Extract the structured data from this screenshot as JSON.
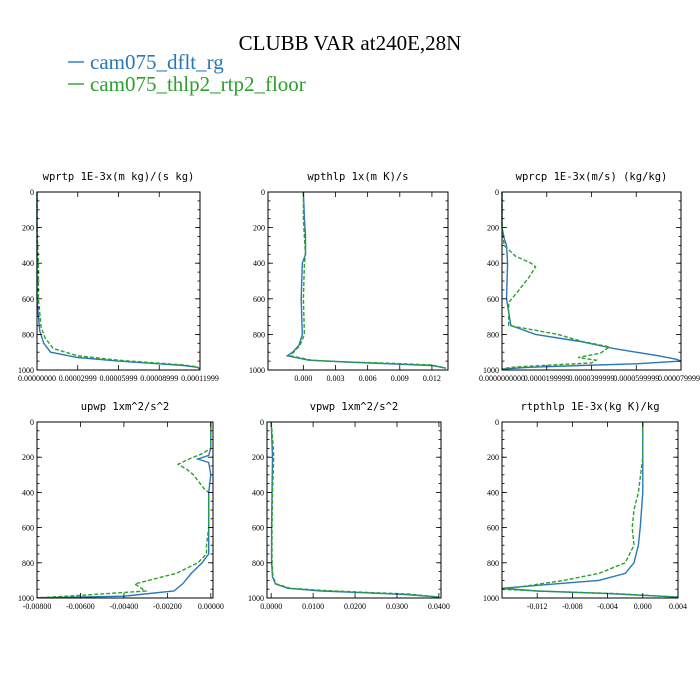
{
  "figure": {
    "title": "CLUBB VAR at240E,28N",
    "legend": [
      {
        "label": "cam075_dflt_rg",
        "color": "#2878b8",
        "dash": "solid"
      },
      {
        "label": "cam075_thlp2_rtp2_floor",
        "color": "#2ca02c",
        "dash": "dash"
      }
    ]
  },
  "chart_data": [
    {
      "type": "line",
      "title": "wprtp  1E-3x(m kg)/(s kg)",
      "xlim": [
        0,
        0.00012
      ],
      "ylim": [
        1000,
        0
      ],
      "xticks": [
        0.0,
        3e-05,
        6e-05,
        9e-05,
        0.00012
      ],
      "xtick_labels": [
        "0.00000000",
        "0.00002999",
        "0.00005999",
        "0.00008999",
        "0.00011999"
      ],
      "yticks": [
        0,
        200,
        400,
        600,
        800,
        1000
      ],
      "series": [
        {
          "name": "cam075_dflt_rg",
          "points": [
            [
              0,
              0
            ],
            [
              0,
              200
            ],
            [
              0,
              400
            ],
            [
              0,
              600
            ],
            [
              2e-06,
              780
            ],
            [
              5e-06,
              850
            ],
            [
              1e-05,
              900
            ],
            [
              3e-05,
              930
            ],
            [
              6e-05,
              950
            ],
            [
              9e-05,
              965
            ],
            [
              0.000108,
              975
            ],
            [
              0.000118,
              985
            ],
            [
              0.00012,
              995
            ]
          ]
        },
        {
          "name": "cam075_thlp2_rtp2_floor",
          "points": [
            [
              0,
              0
            ],
            [
              0,
              200
            ],
            [
              1e-06,
              400
            ],
            [
              1e-06,
              600
            ],
            [
              3e-06,
              760
            ],
            [
              6e-06,
              820
            ],
            [
              1.2e-05,
              880
            ],
            [
              3e-05,
              920
            ],
            [
              6e-05,
              945
            ],
            [
              9e-05,
              962
            ],
            [
              0.000108,
              972
            ],
            [
              0.000118,
              982
            ],
            [
              0.00012,
              995
            ]
          ]
        }
      ]
    },
    {
      "type": "line",
      "title": "wpthlp  1x(m K)/s",
      "xlim": [
        -0.0033,
        0.0135
      ],
      "ylim": [
        1000,
        0
      ],
      "xticks": [
        0.0,
        0.003,
        0.006,
        0.009,
        0.012
      ],
      "xtick_labels": [
        "0.000",
        "0.003",
        "0.006",
        "0.009",
        "0.012"
      ],
      "yticks": [
        0,
        200,
        400,
        600,
        800,
        1000
      ],
      "series": [
        {
          "name": "cam075_dflt_rg",
          "points": [
            [
              0,
              0
            ],
            [
              0.0001,
              150
            ],
            [
              0.0002,
              250
            ],
            [
              0.0002,
              350
            ],
            [
              -0.0001,
              400
            ],
            [
              -0.0002,
              600
            ],
            [
              -0.0001,
              800
            ],
            [
              -0.0004,
              860
            ],
            [
              -0.001,
              900
            ],
            [
              -0.0015,
              920
            ],
            [
              0.0005,
              945
            ],
            [
              0.004,
              955
            ],
            [
              0.008,
              965
            ],
            [
              0.012,
              975
            ],
            [
              0.0133,
              990
            ]
          ]
        },
        {
          "name": "cam075_thlp2_rtp2_floor",
          "points": [
            [
              0,
              0
            ],
            [
              0,
              150
            ],
            [
              0.0001,
              250
            ],
            [
              0.0002,
              350
            ],
            [
              0.0001,
              400
            ],
            [
              0,
              600
            ],
            [
              0.0001,
              800
            ],
            [
              -0.0003,
              860
            ],
            [
              -0.0009,
              900
            ],
            [
              -0.0012,
              920
            ],
            [
              0.0008,
              945
            ],
            [
              0.004,
              955
            ],
            [
              0.008,
              962
            ],
            [
              0.012,
              972
            ],
            [
              0.0133,
              990
            ]
          ]
        }
      ]
    },
    {
      "type": "line",
      "title": "wprcp  1E-3x(m/s) (kg/kg)",
      "xlim": [
        0,
        8e-05
      ],
      "ylim": [
        1000,
        0
      ],
      "xticks": [
        0.0,
        2e-05,
        4e-05,
        6e-05,
        8e-05
      ],
      "xtick_labels": [
        "0.0000000000",
        "0.0000199999",
        "0.0000399999",
        "0.0000599999",
        "0.0000799998"
      ],
      "yticks": [
        0,
        200,
        400,
        600,
        800,
        1000
      ],
      "series": [
        {
          "name": "cam075_dflt_rg",
          "points": [
            [
              0,
              0
            ],
            [
              0,
              200
            ],
            [
              1e-06,
              260
            ],
            [
              2e-06,
              300
            ],
            [
              2.5e-06,
              400
            ],
            [
              2e-06,
              600
            ],
            [
              4e-06,
              750
            ],
            [
              1.5e-05,
              800
            ],
            [
              3.5e-05,
              840
            ],
            [
              5e-05,
              880
            ],
            [
              7e-05,
              920
            ],
            [
              7.8e-05,
              940
            ],
            [
              8e-05,
              950
            ],
            [
              6e-05,
              965
            ],
            [
              3.5e-05,
              975
            ],
            [
              1.2e-05,
              985
            ],
            [
              0,
              995
            ]
          ]
        },
        {
          "name": "cam075_thlp2_rtp2_floor",
          "points": [
            [
              0,
              0
            ],
            [
              0,
              200
            ],
            [
              1e-06,
              300
            ],
            [
              6e-06,
              360
            ],
            [
              1.3e-05,
              400
            ],
            [
              1.5e-05,
              420
            ],
            [
              1.2e-05,
              480
            ],
            [
              7e-06,
              560
            ],
            [
              3e-06,
              620
            ],
            [
              3e-06,
              750
            ],
            [
              1.2e-05,
              770
            ],
            [
              2.5e-05,
              800
            ],
            [
              3.6e-05,
              840
            ],
            [
              4.8e-05,
              870
            ],
            [
              4.4e-05,
              905
            ],
            [
              3.4e-05,
              930
            ],
            [
              4.2e-05,
              945
            ],
            [
              4e-05,
              960
            ],
            [
              1.8e-05,
              975
            ],
            [
              4e-06,
              985
            ],
            [
              0,
              995
            ]
          ]
        }
      ]
    },
    {
      "type": "line",
      "title": "upwp  1xm^2/s^2",
      "xlim": [
        -0.008,
        0.0001
      ],
      "ylim": [
        1000,
        0
      ],
      "xticks": [
        -0.008,
        -0.006,
        -0.004,
        -0.002,
        0.0
      ],
      "xtick_labels": [
        "-0.00800",
        "-0.00600",
        "-0.00400",
        "-0.00200",
        "0.00000"
      ],
      "yticks": [
        0,
        200,
        400,
        600,
        800,
        1000
      ],
      "series": [
        {
          "name": "cam075_dflt_rg",
          "points": [
            [
              0,
              0
            ],
            [
              0,
              150
            ],
            [
              -0.0001,
              190
            ],
            [
              -0.0006,
              210
            ],
            [
              -0.0001,
              230
            ],
            [
              0,
              300
            ],
            [
              -0.0001,
              400
            ],
            [
              -0.0001,
              600
            ],
            [
              -0.0001,
              700
            ],
            [
              -0.0001,
              750
            ],
            [
              -0.0004,
              800
            ],
            [
              -0.0009,
              860
            ],
            [
              -0.0013,
              920
            ],
            [
              -0.0017,
              960
            ],
            [
              -0.004,
              990
            ],
            [
              -0.008,
              999
            ]
          ]
        },
        {
          "name": "cam075_thlp2_rtp2_floor",
          "points": [
            [
              0,
              0
            ],
            [
              0,
              150
            ],
            [
              -0.0004,
              180
            ],
            [
              -0.001,
              210
            ],
            [
              -0.0015,
              240
            ],
            [
              -0.0011,
              270
            ],
            [
              -0.0008,
              300
            ],
            [
              -0.0003,
              380
            ],
            [
              -0.0001,
              400
            ],
            [
              -0.0001,
              600
            ],
            [
              -0.0002,
              700
            ],
            [
              -0.0002,
              750
            ],
            [
              -0.0006,
              800
            ],
            [
              -0.0016,
              860
            ],
            [
              -0.0035,
              920
            ],
            [
              -0.003,
              960
            ],
            [
              -0.006,
              985
            ],
            [
              -0.008,
              999
            ]
          ]
        }
      ]
    },
    {
      "type": "line",
      "title": "vpwp  1xm^2/s^2",
      "xlim": [
        -0.001,
        0.0405
      ],
      "ylim": [
        1000,
        0
      ],
      "xticks": [
        0.0,
        0.01,
        0.02,
        0.03,
        0.04
      ],
      "xtick_labels": [
        "0.0000",
        "0.0100",
        "0.0200",
        "0.0300",
        "0.0400"
      ],
      "yticks": [
        0,
        200,
        400,
        600,
        800,
        1000
      ],
      "series": [
        {
          "name": "cam075_dflt_rg",
          "points": [
            [
              0,
              0
            ],
            [
              0.0003,
              200
            ],
            [
              0.0002,
              400
            ],
            [
              0.0001,
              600
            ],
            [
              0.0001,
              800
            ],
            [
              0.0003,
              880
            ],
            [
              0.001,
              920
            ],
            [
              0.004,
              945
            ],
            [
              0.012,
              960
            ],
            [
              0.022,
              970
            ],
            [
              0.032,
              980
            ],
            [
              0.04,
              995
            ]
          ]
        },
        {
          "name": "cam075_thlp2_rtp2_floor",
          "points": [
            [
              0,
              0
            ],
            [
              0.0005,
              150
            ],
            [
              0.0006,
              200
            ],
            [
              0.0003,
              400
            ],
            [
              0.0002,
              600
            ],
            [
              0.0002,
              800
            ],
            [
              0.0004,
              880
            ],
            [
              0.0012,
              920
            ],
            [
              0.0045,
              945
            ],
            [
              0.013,
              958
            ],
            [
              0.023,
              968
            ],
            [
              0.033,
              978
            ],
            [
              0.04,
              995
            ]
          ]
        }
      ]
    },
    {
      "type": "line",
      "title": "rtpthlp  1E-3x(kg K)/kg",
      "xlim": [
        -0.016,
        0.004
      ],
      "ylim": [
        1000,
        0
      ],
      "xticks": [
        -0.012,
        -0.008,
        -0.004,
        0.0,
        0.004
      ],
      "xtick_labels": [
        "-0.012",
        "-0.008",
        "-0.004",
        "0.000",
        "0.004"
      ],
      "yticks": [
        0,
        200,
        400,
        600,
        800,
        1000
      ],
      "series": [
        {
          "name": "cam075_dflt_rg",
          "points": [
            [
              0,
              0
            ],
            [
              0,
              200
            ],
            [
              0,
              400
            ],
            [
              -0.0003,
              600
            ],
            [
              -0.0005,
              700
            ],
            [
              -0.001,
              800
            ],
            [
              -0.002,
              860
            ],
            [
              -0.005,
              900
            ],
            [
              -0.01,
              920
            ],
            [
              -0.016,
              945
            ],
            [
              -0.012,
              960
            ],
            [
              -0.004,
              975
            ],
            [
              0.004,
              995
            ]
          ]
        },
        {
          "name": "cam075_thlp2_rtp2_floor",
          "points": [
            [
              0,
              0
            ],
            [
              0,
              200
            ],
            [
              -0.0005,
              400
            ],
            [
              -0.001,
              500
            ],
            [
              -0.0012,
              600
            ],
            [
              -0.001,
              700
            ],
            [
              -0.002,
              800
            ],
            [
              -0.005,
              860
            ],
            [
              -0.009,
              900
            ],
            [
              -0.013,
              930
            ],
            [
              -0.016,
              950
            ],
            [
              -0.012,
              960
            ],
            [
              -0.003,
              975
            ],
            [
              0.004,
              995
            ]
          ]
        }
      ]
    }
  ]
}
